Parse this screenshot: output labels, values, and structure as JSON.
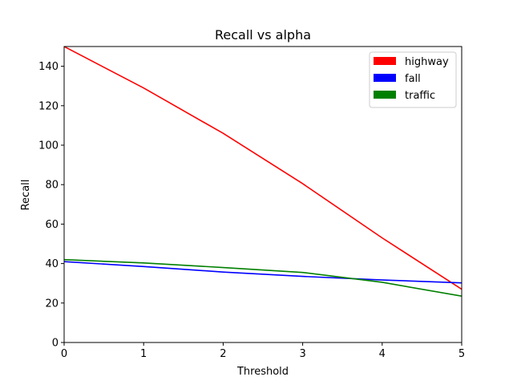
{
  "chart_data": {
    "type": "line",
    "title": "Recall vs alpha",
    "xlabel": "Threshold",
    "ylabel": "Recall",
    "xlim": [
      0,
      5
    ],
    "ylim": [
      0,
      150
    ],
    "x_ticks": [
      0,
      1,
      2,
      3,
      4,
      5
    ],
    "y_ticks": [
      0,
      20,
      40,
      60,
      80,
      100,
      120,
      140
    ],
    "grid": false,
    "legend_position": "top-right",
    "x": [
      0,
      1,
      2,
      3,
      4,
      5
    ],
    "series": [
      {
        "name": "highway",
        "color": "#ff0000",
        "values": [
          150,
          129,
          106,
          80.5,
          53,
          27
        ]
      },
      {
        "name": "fall",
        "color": "#0000ff",
        "values": [
          41,
          38.5,
          35.7,
          33.5,
          31.7,
          30.2
        ]
      },
      {
        "name": "traffic",
        "color": "#008000",
        "values": [
          42,
          40.3,
          38,
          35.5,
          30.5,
          23.5
        ]
      }
    ]
  }
}
